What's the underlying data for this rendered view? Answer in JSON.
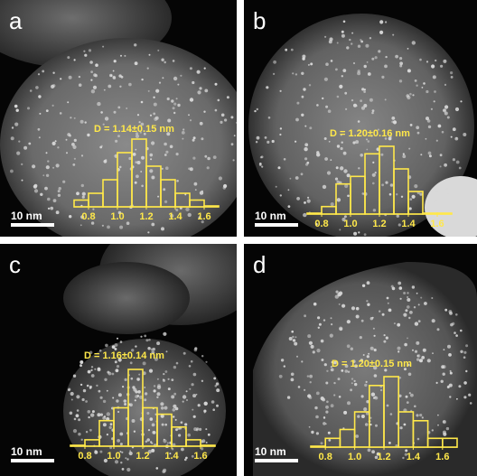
{
  "panels": [
    {
      "letter": "a",
      "label": "D = 1.14±0.15 nm",
      "scale": "10 nm"
    },
    {
      "letter": "b",
      "label": "D = 1.20±0.16 nm",
      "scale": "10 nm"
    },
    {
      "letter": "c",
      "label": "D = 1.16±0.14 nm",
      "scale": "10 nm"
    },
    {
      "letter": "d",
      "label": "D = 1.20±0.15 nm",
      "scale": "10 nm"
    }
  ],
  "colors": {
    "histogram": "#ffe84a",
    "background": "#050505",
    "particle": "#d8d8d8"
  },
  "histograms": [
    {
      "bins": [
        0.75,
        0.85,
        0.95,
        1.05,
        1.15,
        1.25,
        1.35,
        1.45,
        1.55,
        1.65
      ],
      "counts": [
        1,
        2,
        4,
        8,
        10,
        6,
        4,
        2,
        1,
        0
      ],
      "ticks": [
        "0.8",
        "1.0",
        "1.2",
        "1.4",
        "1.6"
      ]
    },
    {
      "bins": [
        0.75,
        0.85,
        0.95,
        1.05,
        1.15,
        1.25,
        1.35,
        1.45,
        1.55,
        1.65
      ],
      "counts": [
        0,
        1,
        4,
        5,
        8,
        9,
        6,
        3,
        0,
        0
      ],
      "ticks": [
        "0.8",
        "1.0",
        "1.2",
        "1.4",
        "1.6"
      ]
    },
    {
      "bins": [
        0.75,
        0.85,
        0.95,
        1.05,
        1.15,
        1.25,
        1.35,
        1.45,
        1.55,
        1.65
      ],
      "counts": [
        0,
        1,
        4,
        6,
        12,
        6,
        5,
        3,
        1,
        0
      ],
      "ticks": [
        "0.8",
        "1.0",
        "1.2",
        "1.4",
        "1.6"
      ]
    },
    {
      "bins": [
        0.75,
        0.85,
        0.95,
        1.05,
        1.15,
        1.25,
        1.35,
        1.45,
        1.55,
        1.65
      ],
      "counts": [
        0,
        1,
        2,
        4,
        7,
        8,
        4,
        3,
        1,
        1
      ],
      "ticks": [
        "0.8",
        "1.0",
        "1.2",
        "1.4",
        "1.6"
      ]
    }
  ]
}
